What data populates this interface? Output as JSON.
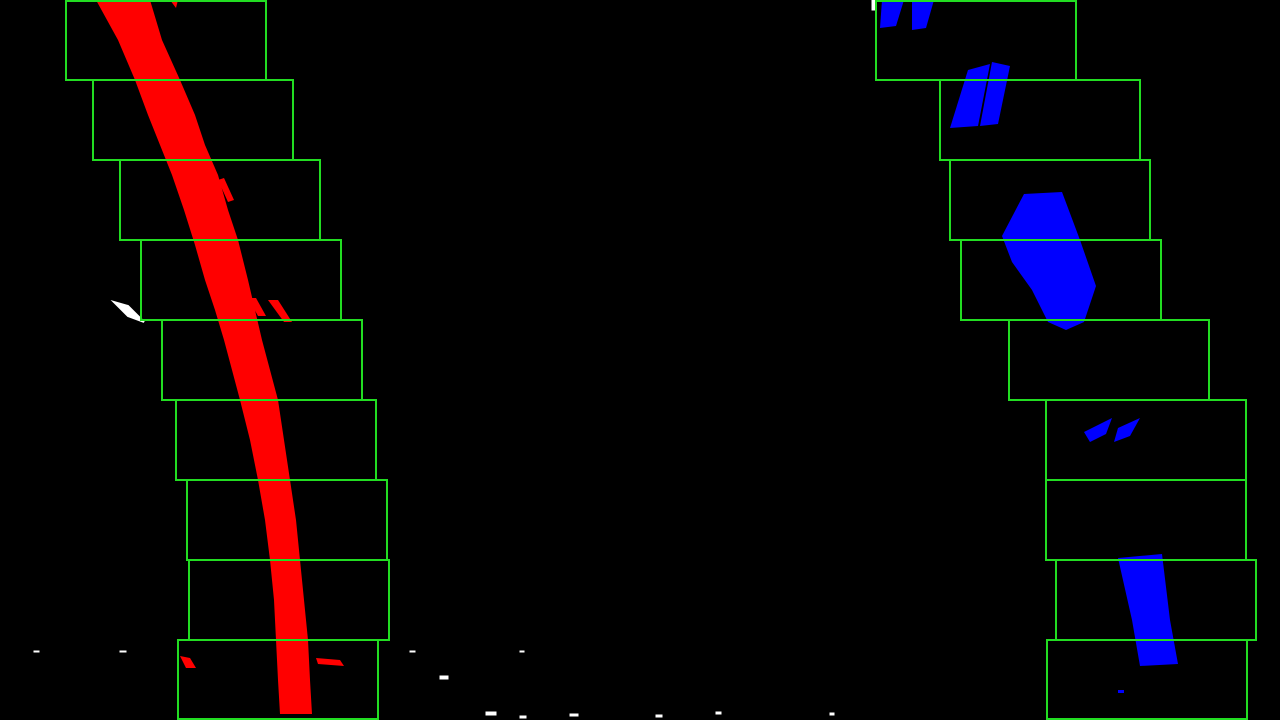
{
  "scene": {
    "description_label": "",
    "background_color": "#000000",
    "window_color": "#22dd22",
    "left_lane_color": "#ff0000",
    "right_lane_color": "#0000ff",
    "noise_color": "#ffffff"
  },
  "sliding_windows": {
    "window_count": 9,
    "left_count": 9,
    "right_count": 9
  }
}
